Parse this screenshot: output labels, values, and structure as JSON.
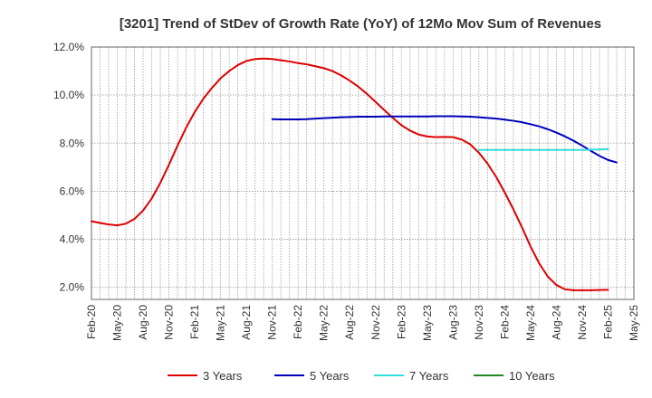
{
  "chart_data": {
    "type": "line",
    "title": "[3201]  Trend of StDev of Growth Rate (YoY) of 12Mo Mov Sum of Revenues",
    "xlabel": "",
    "ylabel": "",
    "ylim": [
      1.5,
      12.0
    ],
    "yticks": [
      2.0,
      4.0,
      6.0,
      8.0,
      10.0,
      12.0
    ],
    "ytick_labels": [
      "2.0%",
      "4.0%",
      "6.0%",
      "8.0%",
      "10.0%",
      "12.0%"
    ],
    "x_tick_labels": [
      "Feb-20",
      "May-20",
      "Aug-20",
      "Nov-20",
      "Feb-21",
      "May-21",
      "Aug-21",
      "Nov-21",
      "Feb-22",
      "May-22",
      "Aug-22",
      "Nov-22",
      "Feb-23",
      "May-23",
      "Aug-23",
      "Nov-23",
      "Feb-24",
      "May-24",
      "Aug-24",
      "Nov-24",
      "Feb-25",
      "May-25"
    ],
    "x_start": "Feb-20",
    "x_months": 63,
    "grid": true,
    "legend_position": "bottom",
    "series": [
      {
        "name": "3 Years",
        "color": "#dd0000",
        "start_month": 0,
        "values": [
          4.75,
          4.68,
          4.62,
          4.58,
          4.65,
          4.85,
          5.2,
          5.7,
          6.35,
          7.1,
          7.9,
          8.65,
          9.3,
          9.85,
          10.3,
          10.7,
          11.0,
          11.25,
          11.42,
          11.5,
          11.52,
          11.5,
          11.45,
          11.4,
          11.33,
          11.28,
          11.2,
          11.12,
          11.0,
          10.82,
          10.6,
          10.35,
          10.05,
          9.72,
          9.38,
          9.05,
          8.75,
          8.52,
          8.36,
          8.28,
          8.25,
          8.26,
          8.25,
          8.15,
          7.95,
          7.6,
          7.15,
          6.6,
          5.95,
          5.25,
          4.5,
          3.7,
          3.0,
          2.45,
          2.1,
          1.92,
          1.88,
          1.88,
          1.88,
          1.89,
          1.9
        ]
      },
      {
        "name": "5 Years",
        "color": "#0000bb",
        "start_month": 21,
        "values": [
          9.0,
          8.99,
          8.99,
          8.99,
          9.0,
          9.02,
          9.04,
          9.06,
          9.08,
          9.09,
          9.1,
          9.1,
          9.1,
          9.11,
          9.11,
          9.11,
          9.11,
          9.11,
          9.11,
          9.12,
          9.12,
          9.12,
          9.11,
          9.1,
          9.08,
          9.05,
          9.02,
          8.98,
          8.93,
          8.87,
          8.79,
          8.7,
          8.58,
          8.44,
          8.28,
          8.1,
          7.9,
          7.68,
          7.47,
          7.3,
          7.2
        ]
      },
      {
        "name": "7 Years",
        "color": "#33dddd",
        "start_month": 45,
        "values": [
          7.72,
          7.72,
          7.72,
          7.72,
          7.72,
          7.72,
          7.72,
          7.72,
          7.72,
          7.72,
          7.72,
          7.72,
          7.72,
          7.73,
          7.74,
          7.75
        ]
      },
      {
        "name": "10 Years",
        "color": "#228822",
        "start_month": 0,
        "values": []
      }
    ]
  }
}
